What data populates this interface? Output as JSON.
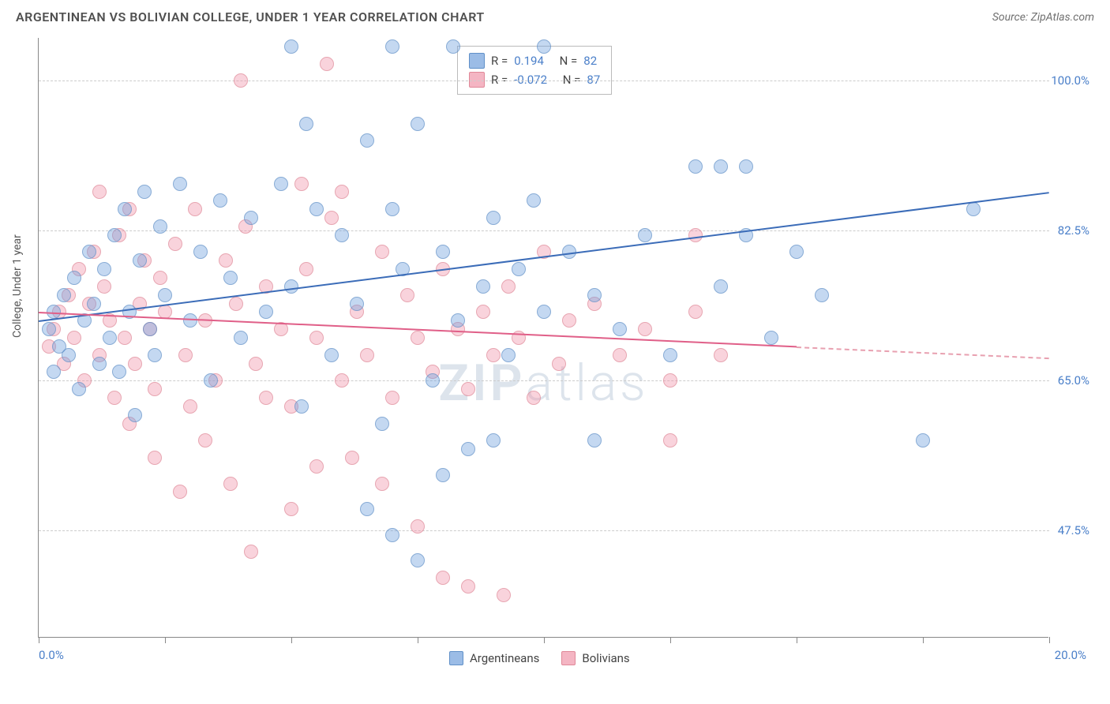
{
  "header": {
    "title": "ARGENTINEAN VS BOLIVIAN COLLEGE, UNDER 1 YEAR CORRELATION CHART",
    "source_prefix": "Source: ",
    "source_name": "ZipAtlas.com"
  },
  "chart": {
    "type": "scatter",
    "ylabel": "College, Under 1 year",
    "xlim": [
      0,
      20
    ],
    "ylim": [
      35,
      105
    ],
    "x_axis_label_left": "0.0%",
    "x_axis_label_right": "20.0%",
    "y_ticks": [
      {
        "v": 47.5,
        "label": "47.5%"
      },
      {
        "v": 65.0,
        "label": "65.0%"
      },
      {
        "v": 82.5,
        "label": "82.5%"
      },
      {
        "v": 100.0,
        "label": "100.0%"
      }
    ],
    "x_tick_positions": [
      0,
      2.5,
      5,
      7.5,
      10,
      12.5,
      15,
      17.5,
      20
    ],
    "background_color": "#ffffff",
    "grid_color": "#cccccc",
    "series": {
      "argentineans": {
        "label": "Argentineans",
        "color_fill": "rgba(112,160,220,0.55)",
        "color_stroke": "#6090c8",
        "trend_color": "#3b6cb8",
        "trend": {
          "x1": 0,
          "y1": 72,
          "x2": 20,
          "y2": 87
        },
        "R": "0.194",
        "N": "82",
        "points": [
          [
            0.2,
            71
          ],
          [
            0.3,
            73
          ],
          [
            0.4,
            69
          ],
          [
            0.5,
            75
          ],
          [
            0.6,
            68
          ],
          [
            0.7,
            77
          ],
          [
            0.8,
            64
          ],
          [
            0.9,
            72
          ],
          [
            1.0,
            80
          ],
          [
            1.1,
            74
          ],
          [
            1.2,
            67
          ],
          [
            1.3,
            78
          ],
          [
            1.4,
            70
          ],
          [
            1.5,
            82
          ],
          [
            1.6,
            66
          ],
          [
            1.7,
            85
          ],
          [
            1.8,
            73
          ],
          [
            1.9,
            61
          ],
          [
            2.0,
            79
          ],
          [
            2.1,
            87
          ],
          [
            2.2,
            71
          ],
          [
            2.3,
            68
          ],
          [
            2.4,
            83
          ],
          [
            2.5,
            75
          ],
          [
            2.8,
            88
          ],
          [
            3.0,
            72
          ],
          [
            3.2,
            80
          ],
          [
            3.4,
            65
          ],
          [
            3.6,
            86
          ],
          [
            3.8,
            77
          ],
          [
            4.0,
            70
          ],
          [
            4.2,
            84
          ],
          [
            4.5,
            73
          ],
          [
            4.8,
            88
          ],
          [
            5.0,
            76
          ],
          [
            5.2,
            62
          ],
          [
            5.0,
            104
          ],
          [
            5.3,
            95
          ],
          [
            5.5,
            85
          ],
          [
            5.8,
            68
          ],
          [
            6.0,
            82
          ],
          [
            6.3,
            74
          ],
          [
            6.5,
            93
          ],
          [
            6.8,
            60
          ],
          [
            7.0,
            85
          ],
          [
            7.2,
            78
          ],
          [
            7.5,
            95
          ],
          [
            7.8,
            65
          ],
          [
            8.0,
            80
          ],
          [
            7.0,
            104
          ],
          [
            8.3,
            72
          ],
          [
            8.5,
            57
          ],
          [
            8.8,
            76
          ],
          [
            9.0,
            84
          ],
          [
            9.3,
            68
          ],
          [
            9.5,
            78
          ],
          [
            6.5,
            50
          ],
          [
            7.0,
            47
          ],
          [
            7.5,
            44
          ],
          [
            8.0,
            54
          ],
          [
            9.8,
            86
          ],
          [
            10.0,
            73
          ],
          [
            10.5,
            80
          ],
          [
            11.0,
            75
          ],
          [
            9.0,
            58
          ],
          [
            11.5,
            71
          ],
          [
            10.0,
            104
          ],
          [
            12.0,
            82
          ],
          [
            12.5,
            68
          ],
          [
            13.0,
            90
          ],
          [
            11.0,
            58
          ],
          [
            8.2,
            104
          ],
          [
            13.5,
            76
          ],
          [
            14.0,
            82
          ],
          [
            14.5,
            70
          ],
          [
            15.0,
            80
          ],
          [
            15.5,
            75
          ],
          [
            13.5,
            90
          ],
          [
            14.0,
            90
          ],
          [
            17.5,
            58
          ],
          [
            18.5,
            85
          ],
          [
            0.3,
            66
          ]
        ]
      },
      "bolivians": {
        "label": "Bolivians",
        "color_fill": "rgba(240,150,170,0.55)",
        "color_stroke": "#e08898",
        "trend_color": "#e05f88",
        "trend": {
          "x1": 0,
          "y1": 73,
          "x2": 15,
          "y2": 69
        },
        "trend_ext": {
          "x1": 15,
          "y1": 69,
          "x2": 20,
          "y2": 67.7
        },
        "R": "-0.072",
        "N": "87",
        "points": [
          [
            0.2,
            69
          ],
          [
            0.3,
            71
          ],
          [
            0.4,
            73
          ],
          [
            0.5,
            67
          ],
          [
            0.6,
            75
          ],
          [
            0.7,
            70
          ],
          [
            0.8,
            78
          ],
          [
            0.9,
            65
          ],
          [
            1.0,
            74
          ],
          [
            1.1,
            80
          ],
          [
            1.2,
            68
          ],
          [
            1.3,
            76
          ],
          [
            1.4,
            72
          ],
          [
            1.5,
            63
          ],
          [
            1.6,
            82
          ],
          [
            1.7,
            70
          ],
          [
            1.8,
            85
          ],
          [
            1.9,
            67
          ],
          [
            2.0,
            74
          ],
          [
            2.1,
            79
          ],
          [
            2.2,
            71
          ],
          [
            2.3,
            64
          ],
          [
            2.4,
            77
          ],
          [
            2.5,
            73
          ],
          [
            2.7,
            81
          ],
          [
            2.9,
            68
          ],
          [
            3.1,
            85
          ],
          [
            3.3,
            72
          ],
          [
            3.5,
            65
          ],
          [
            3.7,
            79
          ],
          [
            3.9,
            74
          ],
          [
            4.1,
            83
          ],
          [
            4.3,
            67
          ],
          [
            4.5,
            76
          ],
          [
            4.8,
            71
          ],
          [
            5.0,
            62
          ],
          [
            5.3,
            78
          ],
          [
            5.5,
            70
          ],
          [
            5.8,
            84
          ],
          [
            6.0,
            65
          ],
          [
            6.3,
            73
          ],
          [
            6.5,
            68
          ],
          [
            6.8,
            80
          ],
          [
            7.0,
            63
          ],
          [
            7.3,
            75
          ],
          [
            7.5,
            70
          ],
          [
            7.8,
            66
          ],
          [
            8.0,
            78
          ],
          [
            8.3,
            71
          ],
          [
            8.5,
            64
          ],
          [
            8.8,
            73
          ],
          [
            9.0,
            68
          ],
          [
            9.3,
            76
          ],
          [
            9.5,
            70
          ],
          [
            9.8,
            63
          ],
          [
            10.0,
            80
          ],
          [
            10.3,
            67
          ],
          [
            10.5,
            72
          ],
          [
            11.0,
            74
          ],
          [
            11.5,
            68
          ],
          [
            12.0,
            71
          ],
          [
            12.5,
            65
          ],
          [
            13.0,
            73
          ],
          [
            13.0,
            82
          ],
          [
            13.5,
            68
          ],
          [
            12.5,
            58
          ],
          [
            1.2,
            87
          ],
          [
            1.8,
            60
          ],
          [
            2.3,
            56
          ],
          [
            2.8,
            52
          ],
          [
            3.3,
            58
          ],
          [
            5.5,
            55
          ],
          [
            5.0,
            50
          ],
          [
            4.0,
            100
          ],
          [
            4.5,
            63
          ],
          [
            5.7,
            102
          ],
          [
            6.2,
            56
          ],
          [
            6.8,
            53
          ],
          [
            7.5,
            48
          ],
          [
            8.0,
            42
          ],
          [
            8.5,
            41
          ],
          [
            9.2,
            40
          ],
          [
            5.2,
            88
          ],
          [
            6.0,
            87
          ],
          [
            4.2,
            45
          ],
          [
            3.0,
            62
          ],
          [
            3.8,
            53
          ]
        ]
      }
    },
    "watermark": "ZIPatlas"
  },
  "legend_top": {
    "r_label": "R =",
    "n_label": "N ="
  }
}
